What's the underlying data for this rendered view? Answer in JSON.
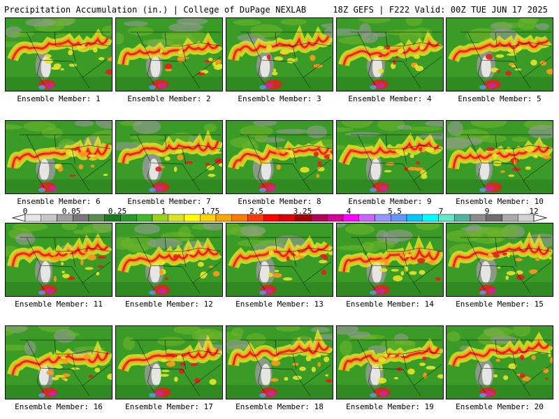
{
  "header": {
    "left_title": "Precipitation Accumulation (in.) | College of DuPage NEXLAB",
    "right_title": "18Z GEFS | F222 Valid: 00Z TUE JUN 17 2025"
  },
  "panels": [
    {
      "caption": "Ensemble Member: 1"
    },
    {
      "caption": "Ensemble Member: 2"
    },
    {
      "caption": "Ensemble Member: 3"
    },
    {
      "caption": "Ensemble Member: 4"
    },
    {
      "caption": "Ensemble Member: 5"
    },
    {
      "caption": "Ensemble Member: 6"
    },
    {
      "caption": "Ensemble Member: 7"
    },
    {
      "caption": "Ensemble Member: 8"
    },
    {
      "caption": "Ensemble Member: 9"
    },
    {
      "caption": "Ensemble Member: 10"
    },
    {
      "caption": "Ensemble Member: 11"
    },
    {
      "caption": "Ensemble Member: 12"
    },
    {
      "caption": "Ensemble Member: 13"
    },
    {
      "caption": "Ensemble Member: 14"
    },
    {
      "caption": "Ensemble Member: 15"
    },
    {
      "caption": "Ensemble Member: 16"
    },
    {
      "caption": "Ensemble Member: 17"
    },
    {
      "caption": "Ensemble Member: 18"
    },
    {
      "caption": "Ensemble Member: 19"
    },
    {
      "caption": "Ensemble Member: 20"
    }
  ],
  "colorbar": {
    "labels": [
      "0",
      "0.05",
      "0.25",
      "1",
      "1.75",
      "2.5",
      "3.25",
      "4",
      "5.5",
      "7",
      "9",
      "12"
    ],
    "colors": [
      "#e6e6e6",
      "#c8c8c8",
      "#a0a0a0",
      "#787878",
      "#5a8c50",
      "#1e7a1e",
      "#2a9a2a",
      "#40b830",
      "#9ad21e",
      "#d7e61e",
      "#ffff00",
      "#ffd200",
      "#ffa500",
      "#ff7800",
      "#ff3c00",
      "#ff0000",
      "#dc0000",
      "#a00000",
      "#b4005a",
      "#d20096",
      "#ff00ff",
      "#c864ff",
      "#9696ff",
      "#6496ff",
      "#00c8ff",
      "#00ffff",
      "#64e6c8",
      "#50b4a0",
      "#8c8c8c",
      "#6e6e6e",
      "#aaaaaa",
      "#d2d2d2"
    ]
  },
  "map_colors": {
    "green_dark": "#2a7f1e",
    "green": "#3a9c26",
    "green_light": "#6bb52a",
    "yellow": "#e6e62a",
    "orange": "#ff9a1e",
    "red": "#e61e1e",
    "magenta": "#c8289a",
    "gray": "#9a9a9a",
    "white": "#eeeeee",
    "border": "#000000"
  }
}
